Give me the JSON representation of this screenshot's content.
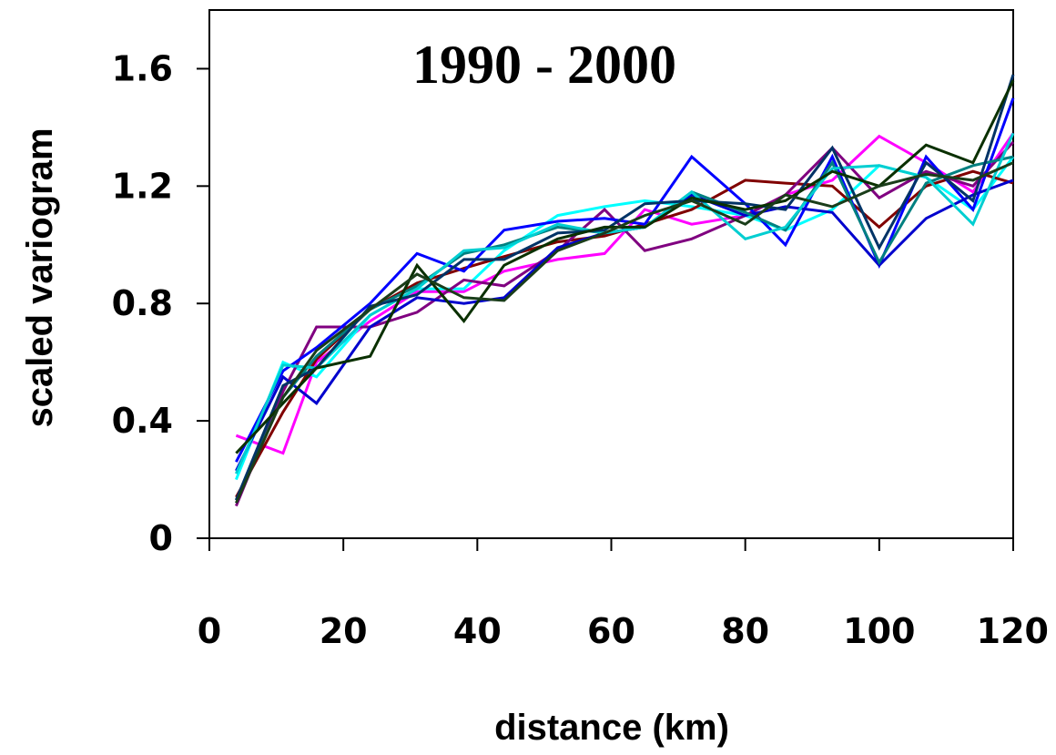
{
  "chart_data": {
    "type": "line",
    "title": "1990 - 2000",
    "xlabel": "distance (km)",
    "ylabel": "scaled variogram",
    "xlim": [
      0,
      120
    ],
    "ylim": [
      0,
      1.8
    ],
    "x_ticks": [
      "0",
      "20",
      "40",
      "60",
      "80",
      "100",
      "120"
    ],
    "y_ticks": [
      "0",
      "0.4",
      "0.8",
      "1.2",
      "1.6"
    ],
    "grid": false,
    "legend": "none",
    "x": [
      4,
      11,
      16,
      24,
      31,
      38,
      44,
      52,
      59,
      65,
      72,
      80,
      86,
      93,
      100,
      107,
      114,
      120
    ],
    "series": [
      {
        "color": "#ff00ff",
        "values": [
          0.35,
          0.29,
          0.6,
          0.74,
          0.84,
          0.84,
          0.91,
          0.95,
          0.97,
          1.12,
          1.07,
          1.1,
          1.17,
          1.22,
          1.37,
          1.28,
          1.18,
          1.38
        ]
      },
      {
        "color": "#00ffff",
        "values": [
          0.2,
          0.6,
          0.55,
          0.76,
          0.85,
          0.85,
          0.98,
          1.1,
          1.13,
          1.15,
          1.13,
          1.1,
          1.05,
          1.12,
          1.27,
          1.23,
          1.12,
          1.3
        ]
      },
      {
        "color": "#800000",
        "values": [
          0.14,
          0.43,
          0.61,
          0.78,
          0.87,
          0.92,
          0.96,
          1.01,
          1.03,
          1.07,
          1.12,
          1.22,
          1.21,
          1.2,
          1.06,
          1.2,
          1.25,
          1.21
        ]
      },
      {
        "color": "#800080",
        "values": [
          0.11,
          0.5,
          0.72,
          0.72,
          0.77,
          0.88,
          0.86,
          0.98,
          1.12,
          0.98,
          1.02,
          1.1,
          1.17,
          1.33,
          1.16,
          1.25,
          1.2,
          1.35
        ]
      },
      {
        "color": "#0000ff",
        "values": [
          0.26,
          0.57,
          0.65,
          0.8,
          0.97,
          0.91,
          1.05,
          1.08,
          1.09,
          1.07,
          1.3,
          1.14,
          1.0,
          1.3,
          0.93,
          1.3,
          1.12,
          1.5
        ]
      },
      {
        "color": "#0000cd",
        "values": [
          0.23,
          0.55,
          0.46,
          0.72,
          0.82,
          0.8,
          0.82,
          0.99,
          1.04,
          1.06,
          1.17,
          1.1,
          1.13,
          1.11,
          0.93,
          1.09,
          1.17,
          1.22
        ]
      },
      {
        "color": "#008080",
        "values": [
          0.13,
          0.48,
          0.62,
          0.78,
          0.86,
          0.97,
          1.0,
          1.06,
          1.04,
          1.06,
          1.18,
          1.11,
          1.05,
          1.28,
          0.94,
          1.21,
          1.27,
          1.3
        ]
      },
      {
        "color": "#00ced1",
        "values": [
          0.22,
          0.59,
          0.58,
          0.76,
          0.85,
          0.98,
          0.99,
          1.07,
          1.04,
          1.06,
          1.18,
          1.02,
          1.06,
          1.26,
          1.27,
          1.23,
          1.07,
          1.38
        ]
      },
      {
        "color": "#003366",
        "values": [
          0.13,
          0.52,
          0.58,
          0.79,
          0.83,
          0.95,
          0.95,
          1.04,
          1.05,
          1.14,
          1.15,
          1.14,
          1.12,
          1.33,
          0.99,
          1.28,
          1.15,
          1.58
        ]
      },
      {
        "color": "#0a3000",
        "values": [
          0.29,
          0.46,
          0.58,
          0.62,
          0.93,
          0.74,
          0.93,
          1.02,
          1.06,
          1.06,
          1.16,
          1.12,
          1.15,
          1.25,
          1.2,
          1.34,
          1.28,
          1.56
        ]
      },
      {
        "color": "#1a3d1a",
        "values": [
          0.12,
          0.48,
          0.64,
          0.78,
          0.9,
          0.82,
          0.81,
          0.98,
          1.04,
          1.1,
          1.15,
          1.07,
          1.17,
          1.13,
          1.2,
          1.24,
          1.22,
          1.28
        ]
      }
    ]
  }
}
